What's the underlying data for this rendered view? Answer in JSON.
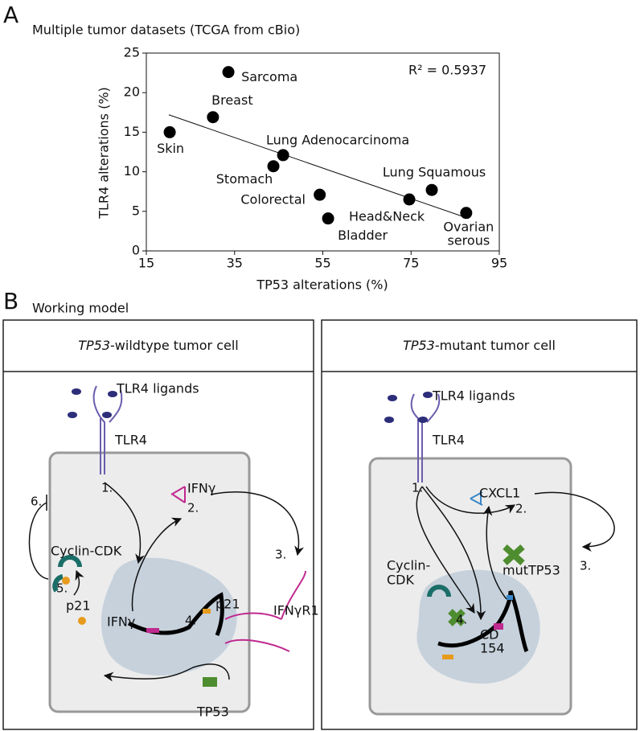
{
  "panel_labels": [
    "A",
    "B"
  ],
  "chart_data": {
    "type": "scatter",
    "title": "Multiple tumor datasets (TCGA from cBio)",
    "x_label": "TP53 alterations (%)",
    "y_label": "TLR4 alterations (%)",
    "annotation": "R² = 0.5937",
    "x": [
      20.3,
      30.1,
      33.6,
      43.8,
      46.0,
      54.3,
      56.2,
      74.6,
      79.7,
      87.5
    ],
    "values": [
      15.0,
      16.9,
      22.6,
      10.7,
      12.1,
      7.1,
      4.1,
      6.5,
      7.7,
      4.8
    ],
    "labels": [
      [
        "Skin"
      ],
      [
        "Breast"
      ],
      [
        "Sarcoma"
      ],
      [
        "Stomach"
      ],
      [
        "Lung Adenocarcinoma"
      ],
      [
        "Colorectal"
      ],
      [
        "Bladder"
      ],
      [
        "Head&Neck"
      ],
      [
        "Lung Squamous"
      ],
      [
        "Ovarian",
        "serous"
      ]
    ],
    "color": "#000000",
    "trendline": {
      "x": [
        20.1,
        88.0
      ],
      "y": [
        17.2,
        4.1
      ]
    },
    "xlim": [
      15,
      95
    ],
    "xticks": [
      15,
      35,
      55,
      75,
      95
    ],
    "ylim": [
      0,
      25
    ],
    "yticks": [
      0,
      5,
      10,
      15,
      20,
      25
    ]
  },
  "working_model": {
    "title": "Working model",
    "left": {
      "title_gene": "TP53",
      "title_rest": "-wildtype tumor cell",
      "ligands": "TLR4 ligands",
      "receptor": "TLR4",
      "step1": "1.",
      "ifng": "IFNγ",
      "step2": "2.",
      "step3": "3.",
      "ifngr1": "IFNγR1",
      "step6": "6.",
      "cyclin": "Cyclin-CDK",
      "step5": "5.",
      "p21_a": "p21",
      "ifng_gene": "IFNγ",
      "p21_gene": "p21",
      "step4": "4.",
      "tp53": "TP53"
    },
    "right": {
      "title_gene": "TP53",
      "title_rest": "-mutant tumor cell",
      "ligands": "TLR4 ligands",
      "receptor": "TLR4",
      "step1": "1.",
      "cxcl1": "CXCL1",
      "step2": "2.",
      "step3": "3.",
      "mut": "mutTP53",
      "cyclin": [
        "Cyclin-",
        "CDK"
      ],
      "step4": "4.",
      "cd154": [
        "CD",
        "154"
      ]
    }
  }
}
